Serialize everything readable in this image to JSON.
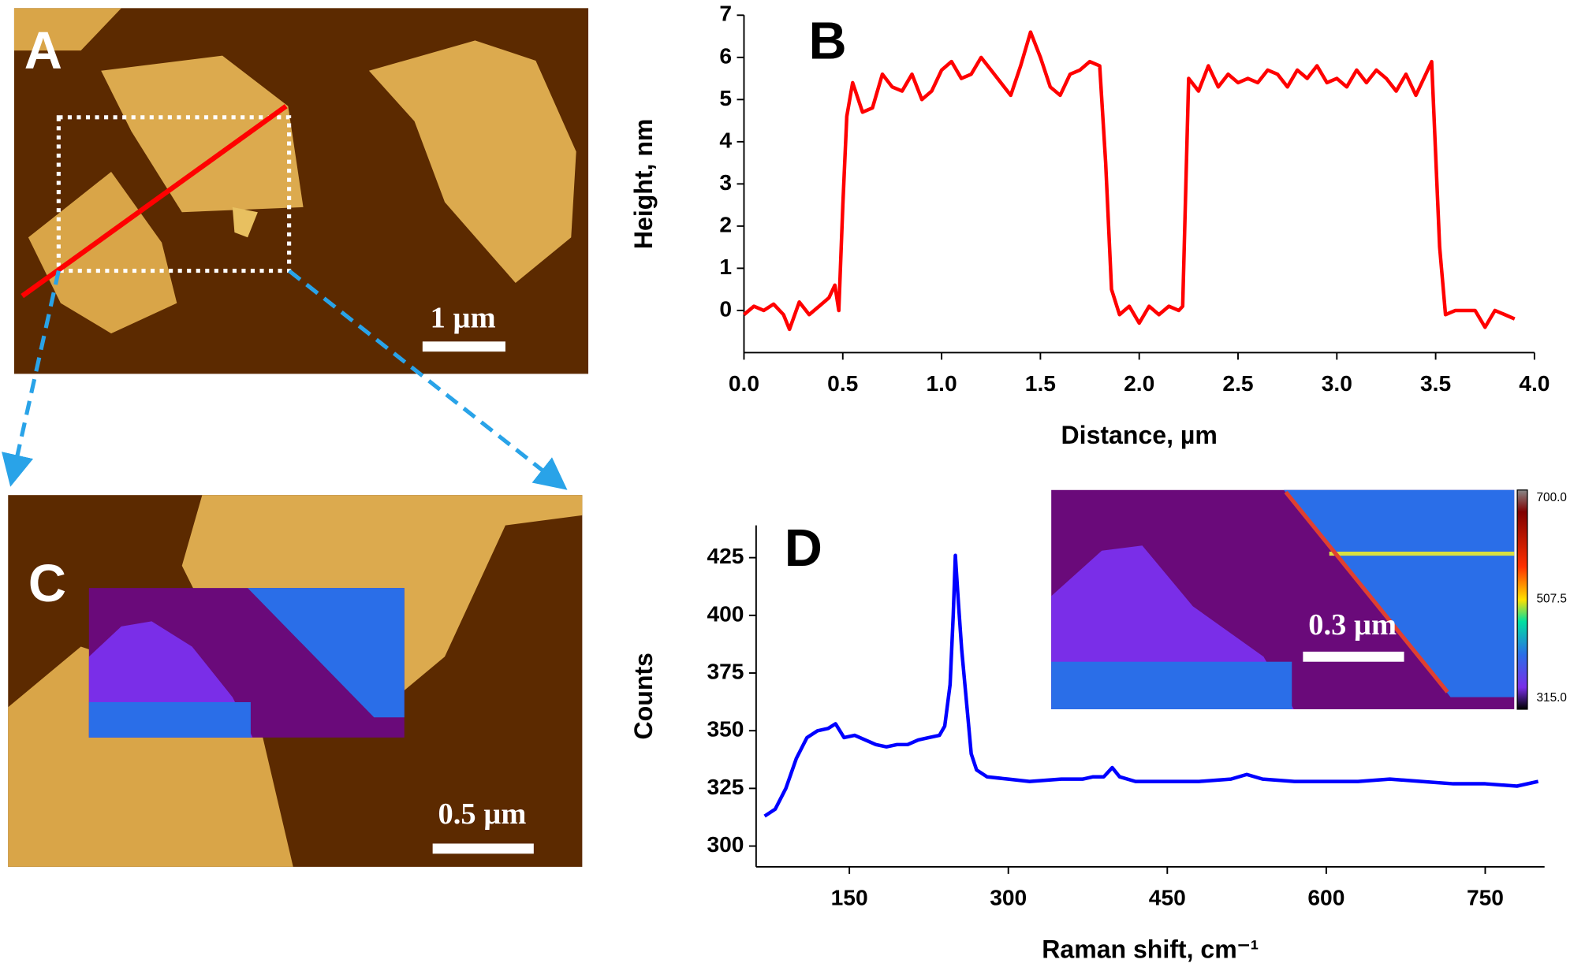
{
  "images": {
    "A": {
      "label": "A",
      "scale_bar": "1 µm"
    },
    "C": {
      "label": "C",
      "scale_bar": "0.5 µm"
    },
    "D_inset": {
      "scale_bar": "0.3 µm",
      "colorbar_labels": [
        "700.0",
        "507.5",
        "315.0"
      ]
    }
  },
  "chart_data": [
    {
      "type": "line",
      "panel_label": "B",
      "x_label": "Distance, µm",
      "y_label": "Height, nm",
      "color": "#ff0000",
      "xlim": [
        0,
        4
      ],
      "ylim": [
        -1,
        7
      ],
      "xticks": [
        {
          "value": 0,
          "label": "0.0"
        },
        0.5,
        {
          "value": 1,
          "label": "1.0"
        },
        1.5,
        {
          "value": 2,
          "label": "2.0"
        },
        2.5,
        {
          "value": 3,
          "label": "3.0"
        },
        3.5,
        {
          "value": 4,
          "label": "4.0"
        }
      ],
      "yticks": [
        0,
        1,
        2,
        3,
        4,
        5,
        6,
        7
      ],
      "x": [
        0,
        0.05,
        0.1,
        0.15,
        0.2,
        0.23,
        0.28,
        0.33,
        0.38,
        0.43,
        0.46,
        0.48,
        0.5,
        0.52,
        0.55,
        0.6,
        0.65,
        0.7,
        0.75,
        0.8,
        0.85,
        0.9,
        0.95,
        1.0,
        1.05,
        1.1,
        1.15,
        1.2,
        1.25,
        1.3,
        1.35,
        1.4,
        1.45,
        1.5,
        1.55,
        1.6,
        1.65,
        1.7,
        1.75,
        1.8,
        1.83,
        1.86,
        1.9,
        1.95,
        2.0,
        2.05,
        2.1,
        2.15,
        2.2,
        2.22,
        2.25,
        2.3,
        2.35,
        2.4,
        2.45,
        2.5,
        2.55,
        2.6,
        2.65,
        2.7,
        2.75,
        2.8,
        2.85,
        2.9,
        2.95,
        3.0,
        3.05,
        3.1,
        3.15,
        3.2,
        3.25,
        3.3,
        3.35,
        3.4,
        3.45,
        3.48,
        3.52,
        3.55,
        3.6,
        3.65,
        3.7,
        3.75,
        3.8,
        3.85,
        3.9
      ],
      "values": [
        -0.1,
        0.1,
        0.0,
        0.15,
        -0.1,
        -0.45,
        0.2,
        -0.1,
        0.1,
        0.3,
        0.6,
        0.0,
        2.5,
        4.6,
        5.4,
        4.7,
        4.8,
        5.6,
        5.3,
        5.2,
        5.6,
        5.0,
        5.2,
        5.7,
        5.9,
        5.5,
        5.6,
        6.0,
        5.7,
        5.4,
        5.1,
        5.8,
        6.6,
        6.0,
        5.3,
        5.1,
        5.6,
        5.7,
        5.9,
        5.8,
        3.5,
        0.5,
        -0.1,
        0.1,
        -0.3,
        0.1,
        -0.1,
        0.1,
        0.0,
        0.1,
        5.5,
        5.2,
        5.8,
        5.3,
        5.6,
        5.4,
        5.5,
        5.4,
        5.7,
        5.6,
        5.3,
        5.7,
        5.5,
        5.8,
        5.4,
        5.5,
        5.3,
        5.7,
        5.4,
        5.7,
        5.5,
        5.2,
        5.6,
        5.1,
        5.6,
        5.9,
        1.5,
        -0.1,
        0.0,
        0.0,
        0.0,
        -0.4,
        0.0,
        -0.1,
        -0.2
      ]
    },
    {
      "type": "line",
      "panel_label": "D",
      "x_label": "Raman shift, cm⁻¹",
      "y_label": "Counts",
      "color": "#0000ff",
      "xlim": [
        62,
        806
      ],
      "ylim": [
        291,
        439
      ],
      "xticks": [
        150,
        300,
        450,
        600,
        750
      ],
      "yticks": [
        300,
        325,
        350,
        375,
        400,
        425
      ],
      "x": [
        70,
        80,
        90,
        100,
        110,
        120,
        130,
        137,
        145,
        155,
        165,
        175,
        185,
        195,
        205,
        215,
        225,
        235,
        240,
        245,
        248,
        250,
        253,
        256,
        260,
        265,
        270,
        280,
        300,
        320,
        350,
        370,
        380,
        390,
        398,
        405,
        420,
        450,
        480,
        510,
        525,
        540,
        570,
        600,
        630,
        660,
        690,
        720,
        750,
        780,
        800
      ],
      "values": [
        313,
        316,
        325,
        338,
        347,
        350,
        351,
        353,
        347,
        348,
        346,
        344,
        343,
        344,
        344,
        346,
        347,
        348,
        352,
        370,
        400,
        426,
        405,
        385,
        365,
        340,
        333,
        330,
        329,
        328,
        329,
        329,
        330,
        330,
        334,
        330,
        328,
        328,
        328,
        329,
        331,
        329,
        328,
        328,
        328,
        329,
        328,
        327,
        327,
        326,
        328
      ]
    }
  ]
}
